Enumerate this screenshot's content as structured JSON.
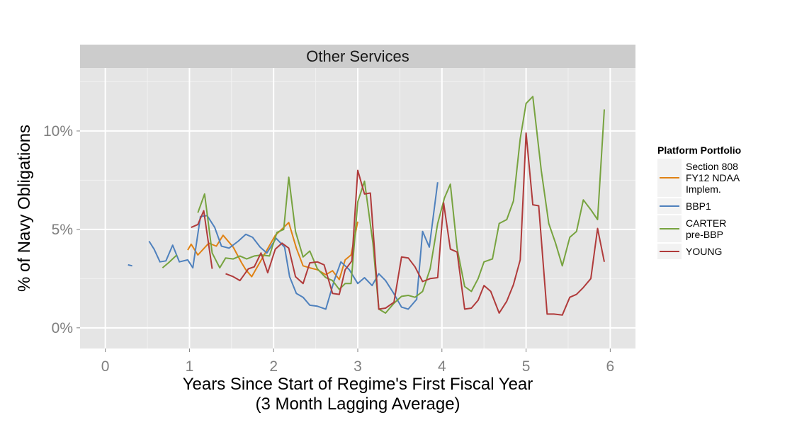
{
  "chart_data": {
    "type": "line",
    "facet_label": "Other Services",
    "xlabel_line1": "Years Since Start of Regime's First Fiscal Year",
    "xlabel_line2": "(3 Month Lagging Average)",
    "ylabel": "% of Navy Obligations",
    "xlim": [
      -0.3,
      6.3
    ],
    "ylim": [
      -1.05,
      13.2
    ],
    "x_ticks": [
      0,
      1,
      2,
      3,
      4,
      5,
      6
    ],
    "x_tick_labels": [
      "0",
      "1",
      "2",
      "3",
      "4",
      "5",
      "6"
    ],
    "y_ticks": [
      0,
      5,
      10
    ],
    "y_tick_labels": [
      "0%",
      "5%",
      "10%"
    ],
    "legend_title": "Platform Portfolio",
    "legend_position": "right",
    "grid": true,
    "series": [
      {
        "name": "Section 808 FY12 NDAA Implem.",
        "legend_lines": [
          "Section 808",
          "FY12 NDAA",
          "Implem."
        ],
        "color": "#E08214",
        "segments": [
          [
            [
              0.98,
              3.95
            ],
            [
              1.02,
              4.25
            ],
            [
              1.1,
              3.7
            ],
            [
              1.23,
              4.3
            ],
            [
              1.32,
              4.15
            ],
            [
              1.4,
              4.7
            ],
            [
              1.52,
              4.1
            ],
            [
              1.62,
              3.3
            ],
            [
              1.67,
              2.95
            ],
            [
              1.74,
              2.6
            ],
            [
              1.84,
              3.35
            ],
            [
              1.92,
              3.95
            ],
            [
              2.02,
              4.7
            ],
            [
              2.12,
              5.1
            ],
            [
              2.18,
              5.35
            ],
            [
              2.27,
              4.05
            ],
            [
              2.35,
              3.15
            ],
            [
              2.43,
              3.05
            ],
            [
              2.52,
              2.95
            ],
            [
              2.62,
              2.7
            ],
            [
              2.7,
              2.9
            ],
            [
              2.78,
              2.45
            ],
            [
              2.85,
              3.45
            ],
            [
              2.92,
              3.7
            ],
            [
              3.0,
              5.4
            ]
          ]
        ]
      },
      {
        "name": "BBP1",
        "legend_lines": [
          "BBP1"
        ],
        "color": "#4F81BD",
        "segments": [
          [
            [
              0.27,
              3.2
            ],
            [
              0.32,
              3.15
            ]
          ],
          [
            [
              0.52,
              4.4
            ],
            [
              0.58,
              4.0
            ],
            [
              0.65,
              3.35
            ],
            [
              0.72,
              3.4
            ],
            [
              0.8,
              4.2
            ],
            [
              0.88,
              3.35
            ],
            [
              0.98,
              3.45
            ],
            [
              1.04,
              3.05
            ],
            [
              1.13,
              5.65
            ],
            [
              1.21,
              5.7
            ],
            [
              1.3,
              5.1
            ],
            [
              1.38,
              4.15
            ],
            [
              1.47,
              4.05
            ],
            [
              1.58,
              4.4
            ],
            [
              1.67,
              4.75
            ],
            [
              1.75,
              4.6
            ],
            [
              1.84,
              4.1
            ],
            [
              1.92,
              3.8
            ],
            [
              2.03,
              4.55
            ],
            [
              2.13,
              4.1
            ],
            [
              2.19,
              2.6
            ],
            [
              2.27,
              1.75
            ],
            [
              2.35,
              1.55
            ],
            [
              2.43,
              1.15
            ],
            [
              2.52,
              1.1
            ],
            [
              2.62,
              0.95
            ],
            [
              2.72,
              2.4
            ],
            [
              2.8,
              3.35
            ],
            [
              2.9,
              2.95
            ],
            [
              3.0,
              2.25
            ],
            [
              3.08,
              2.55
            ],
            [
              3.17,
              2.15
            ],
            [
              3.25,
              2.75
            ],
            [
              3.33,
              2.4
            ],
            [
              3.42,
              1.8
            ],
            [
              3.52,
              1.05
            ],
            [
              3.6,
              0.95
            ],
            [
              3.7,
              1.45
            ],
            [
              3.77,
              4.9
            ],
            [
              3.85,
              4.1
            ],
            [
              3.95,
              7.4
            ]
          ]
        ]
      },
      {
        "name": "CARTER pre-BBP",
        "legend_lines": [
          "CARTER",
          "pre-BBP"
        ],
        "color": "#77A33F",
        "segments": [
          [
            [
              0.68,
              3.05
            ],
            [
              0.75,
              3.3
            ],
            [
              0.85,
              3.7
            ]
          ],
          [
            [
              1.1,
              5.85
            ],
            [
              1.18,
              6.8
            ],
            [
              1.27,
              3.8
            ],
            [
              1.36,
              3.05
            ],
            [
              1.43,
              3.55
            ],
            [
              1.52,
              3.5
            ],
            [
              1.6,
              3.65
            ],
            [
              1.68,
              3.5
            ],
            [
              1.77,
              3.65
            ],
            [
              1.86,
              3.7
            ],
            [
              1.95,
              3.65
            ],
            [
              2.04,
              4.85
            ],
            [
              2.12,
              5.0
            ],
            [
              2.18,
              7.65
            ],
            [
              2.26,
              4.9
            ],
            [
              2.35,
              3.6
            ],
            [
              2.43,
              3.9
            ],
            [
              2.52,
              3.0
            ],
            [
              2.62,
              2.55
            ],
            [
              2.7,
              2.4
            ],
            [
              2.78,
              1.95
            ],
            [
              2.85,
              2.25
            ],
            [
              2.92,
              2.25
            ],
            [
              3.0,
              6.4
            ],
            [
              3.08,
              7.45
            ],
            [
              3.18,
              4.3
            ],
            [
              3.25,
              0.95
            ],
            [
              3.33,
              0.75
            ],
            [
              3.43,
              1.25
            ],
            [
              3.52,
              1.6
            ],
            [
              3.6,
              1.65
            ],
            [
              3.68,
              1.55
            ],
            [
              3.77,
              1.85
            ],
            [
              3.86,
              3.0
            ],
            [
              3.95,
              5.3
            ],
            [
              4.03,
              6.6
            ],
            [
              4.1,
              7.3
            ],
            [
              4.18,
              4.05
            ],
            [
              4.27,
              2.1
            ],
            [
              4.35,
              1.85
            ],
            [
              4.43,
              2.5
            ],
            [
              4.5,
              3.35
            ],
            [
              4.6,
              3.5
            ],
            [
              4.68,
              5.3
            ],
            [
              4.77,
              5.5
            ],
            [
              4.85,
              6.45
            ],
            [
              4.93,
              9.6
            ],
            [
              5.0,
              11.4
            ],
            [
              5.08,
              11.75
            ],
            [
              5.18,
              8.0
            ],
            [
              5.27,
              5.3
            ],
            [
              5.35,
              4.3
            ],
            [
              5.43,
              3.15
            ],
            [
              5.52,
              4.6
            ],
            [
              5.6,
              4.9
            ],
            [
              5.68,
              6.5
            ],
            [
              5.77,
              6.0
            ],
            [
              5.85,
              5.5
            ],
            [
              5.93,
              11.1
            ]
          ]
        ]
      },
      {
        "name": "YOUNG",
        "legend_lines": [
          "YOUNG"
        ],
        "color": "#B03B3B",
        "segments": [
          [
            [
              1.02,
              5.1
            ],
            [
              1.1,
              5.25
            ],
            [
              1.17,
              5.95
            ],
            [
              1.27,
              3.0
            ]
          ],
          [
            [
              1.43,
              2.75
            ],
            [
              1.52,
              2.6
            ],
            [
              1.6,
              2.4
            ],
            [
              1.7,
              3.0
            ],
            [
              1.77,
              3.1
            ],
            [
              1.85,
              3.8
            ],
            [
              1.93,
              2.8
            ],
            [
              2.02,
              4.0
            ],
            [
              2.1,
              4.3
            ],
            [
              2.18,
              4.05
            ],
            [
              2.26,
              2.6
            ],
            [
              2.35,
              2.25
            ],
            [
              2.43,
              3.3
            ],
            [
              2.52,
              3.35
            ],
            [
              2.6,
              3.2
            ],
            [
              2.7,
              1.75
            ],
            [
              2.78,
              1.7
            ],
            [
              2.85,
              2.95
            ],
            [
              2.93,
              3.4
            ],
            [
              3.0,
              8.0
            ],
            [
              3.08,
              6.8
            ],
            [
              3.15,
              6.85
            ],
            [
              3.25,
              0.95
            ],
            [
              3.33,
              1.0
            ],
            [
              3.43,
              1.3
            ],
            [
              3.52,
              3.6
            ],
            [
              3.6,
              3.55
            ],
            [
              3.68,
              3.1
            ],
            [
              3.77,
              2.35
            ],
            [
              3.86,
              2.5
            ],
            [
              3.95,
              2.55
            ],
            [
              4.02,
              6.35
            ],
            [
              4.1,
              4.0
            ],
            [
              4.18,
              3.85
            ],
            [
              4.27,
              0.95
            ],
            [
              4.35,
              1.0
            ],
            [
              4.43,
              1.4
            ],
            [
              4.5,
              2.15
            ],
            [
              4.58,
              1.85
            ],
            [
              4.68,
              0.75
            ],
            [
              4.77,
              1.35
            ],
            [
              4.85,
              2.2
            ],
            [
              4.93,
              3.45
            ],
            [
              5.0,
              9.9
            ],
            [
              5.08,
              6.25
            ],
            [
              5.15,
              6.2
            ],
            [
              5.25,
              0.7
            ],
            [
              5.33,
              0.7
            ],
            [
              5.43,
              0.65
            ],
            [
              5.52,
              1.55
            ],
            [
              5.6,
              1.7
            ],
            [
              5.68,
              2.05
            ],
            [
              5.77,
              2.5
            ],
            [
              5.85,
              5.05
            ],
            [
              5.93,
              3.35
            ]
          ]
        ]
      }
    ]
  }
}
